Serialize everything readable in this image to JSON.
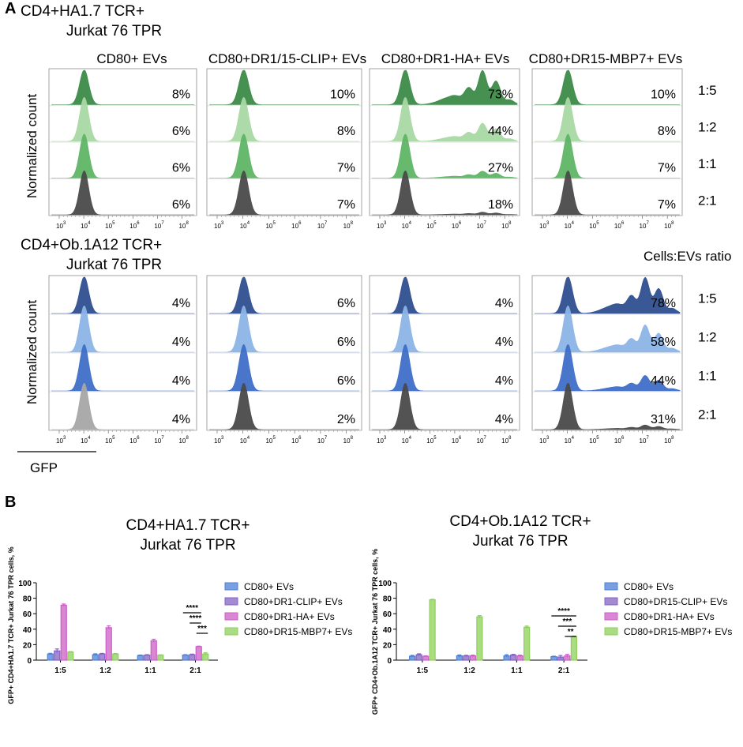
{
  "panel_a": {
    "label": "A",
    "groups": [
      {
        "title_line1": "CD4+HA1.7 TCR+",
        "title_line2": "Jurkat 76 TPR",
        "palette": [
          "#3c8a48",
          "#a9d8a4",
          "#5fb565",
          "#4a4a4a"
        ],
        "columns": [
          {
            "title": "CD80+ EVs",
            "percents": [
              "8%",
              "6%",
              "6%",
              "6%"
            ],
            "shape": "peak",
            "gfp_tails": [
              0,
              0,
              0,
              0
            ]
          },
          {
            "title": "CD80+DR1/15-CLIP+ EVs",
            "percents": [
              "10%",
              "8%",
              "7%",
              "7%"
            ],
            "shape": "peak",
            "gfp_tails": [
              0,
              0,
              0,
              0
            ]
          },
          {
            "title": "CD80+DR1-HA+ EVs",
            "percents": [
              "73%",
              "44%",
              "27%",
              "18%"
            ],
            "shape": "bimodal",
            "gfp_tails": [
              1.0,
              0.42,
              0.16,
              0.06
            ]
          },
          {
            "title": "CD80+DR15-MBP7+ EVs",
            "percents": [
              "10%",
              "8%",
              "7%",
              "7%"
            ],
            "shape": "peak",
            "gfp_tails": [
              0,
              0,
              0,
              0
            ]
          }
        ]
      },
      {
        "title_line1": "CD4+Ob.1A12 TCR+",
        "title_line2": "Jurkat 76 TPR",
        "palette": [
          "#2f4f8f",
          "#8cb4e6",
          "#3f6fc7",
          "#4a4a4a"
        ],
        "columns": [
          {
            "title": "",
            "percents": [
              "4%",
              "4%",
              "4%",
              "4%"
            ],
            "shape": "peak",
            "gfp_tails": [
              0,
              0,
              0,
              0
            ]
          },
          {
            "title": "",
            "percents": [
              "6%",
              "6%",
              "6%",
              "2%"
            ],
            "shape": "peak",
            "gfp_tails": [
              0,
              0,
              0,
              0
            ]
          },
          {
            "title": "",
            "percents": [
              "4%",
              "4%",
              "4%",
              "4%"
            ],
            "shape": "peak",
            "gfp_tails": [
              0,
              0,
              0,
              0
            ]
          },
          {
            "title": "",
            "percents": [
              "78%",
              "58%",
              "44%",
              "31%"
            ],
            "shape": "bimodal",
            "gfp_tails": [
              1.0,
              0.6,
              0.34,
              0.1
            ]
          }
        ]
      }
    ],
    "ratios": [
      "1:5",
      "1:2",
      "1:1",
      "2:1"
    ],
    "ratio_header": "Cells:EVs ratio",
    "ylabel": "Normalized count",
    "xlabel": "GFP",
    "x_ticks": [
      "10",
      "10",
      "10",
      "10",
      "10",
      "10"
    ],
    "x_tick_exponents": [
      "3",
      "4",
      "5",
      "6",
      "7",
      "8"
    ],
    "first_block_last_row_color": "#a6a6a6"
  },
  "panel_b": {
    "label": "B",
    "chart_data": [
      {
        "type": "bar",
        "title_line1": "CD4+HA1.7 TCR+",
        "title_line2": "Jurkat 76 TPR",
        "ylabel": "GFP+ CD4+HA1.7 TCR+ Jurkat 76 TPR cells, %",
        "xlabel": "",
        "ylim": [
          0,
          100
        ],
        "yticks": [
          "0",
          "20",
          "40",
          "60",
          "80",
          "100"
        ],
        "categories": [
          "1:5",
          "1:2",
          "1:1",
          "2:1"
        ],
        "series": [
          {
            "name": "CD80+ EVs",
            "color": "#4d7fd6",
            "values": [
              8,
              7,
              6,
              6.5
            ],
            "errors": [
              0.8,
              1.2,
              0.6,
              0.6
            ]
          },
          {
            "name": "CD80+DR1-CLIP+ EVs",
            "color": "#8463c4",
            "values": [
              12,
              8,
              6.5,
              7
            ],
            "errors": [
              2.5,
              0.8,
              0.6,
              0.8
            ]
          },
          {
            "name": "CD80+DR1-HA+ EVs",
            "color": "#cc5fc7",
            "values": [
              71,
              42,
              25,
              17.5
            ],
            "errors": [
              1.5,
              2.2,
              2,
              0.6
            ]
          },
          {
            "name": "CD80+DR15-MBP7+ EVs",
            "color": "#8ed05a",
            "values": [
              10.5,
              8,
              6.5,
              8
            ],
            "errors": [
              0.5,
              0.6,
              0.4,
              1.5
            ]
          }
        ],
        "significance": [
          "****",
          "****",
          "***"
        ]
      },
      {
        "type": "bar",
        "title_line1": "CD4+Ob.1A12 TCR+",
        "title_line2": "Jurkat 76 TPR",
        "ylabel": "GFP+ CD4+Ob.1A12 TCR+ Jurkat 76 TPR cells, %",
        "xlabel": "",
        "ylim": [
          0,
          100
        ],
        "yticks": [
          "0",
          "20",
          "40",
          "60",
          "80",
          "100"
        ],
        "categories": [
          "1:5",
          "1:2",
          "1:1",
          "2:1"
        ],
        "series": [
          {
            "name": "CD80+ EVs",
            "color": "#4d7fd6",
            "values": [
              5,
              5.5,
              5.5,
              4.5
            ],
            "errors": [
              1.2,
              1.2,
              1.5,
              0.6
            ]
          },
          {
            "name": "CD80+DR15-CLIP+ EVs",
            "color": "#8463c4",
            "values": [
              7,
              5.5,
              6.5,
              4
            ],
            "errors": [
              1.2,
              0.8,
              1,
              2
            ]
          },
          {
            "name": "CD80+DR1-HA+ EVs",
            "color": "#cc5fc7",
            "values": [
              5,
              5.5,
              5.5,
              5.5
            ],
            "errors": [
              0.6,
              1,
              1,
              2
            ]
          },
          {
            "name": "CD80+DR15-MBP7+ EVs",
            "color": "#8ed05a",
            "values": [
              78,
              56,
              42.5,
              30.5
            ],
            "errors": [
              0.6,
              1.5,
              1.5,
              0.6
            ]
          }
        ],
        "significance": [
          "****",
          "***",
          "**"
        ]
      }
    ]
  }
}
